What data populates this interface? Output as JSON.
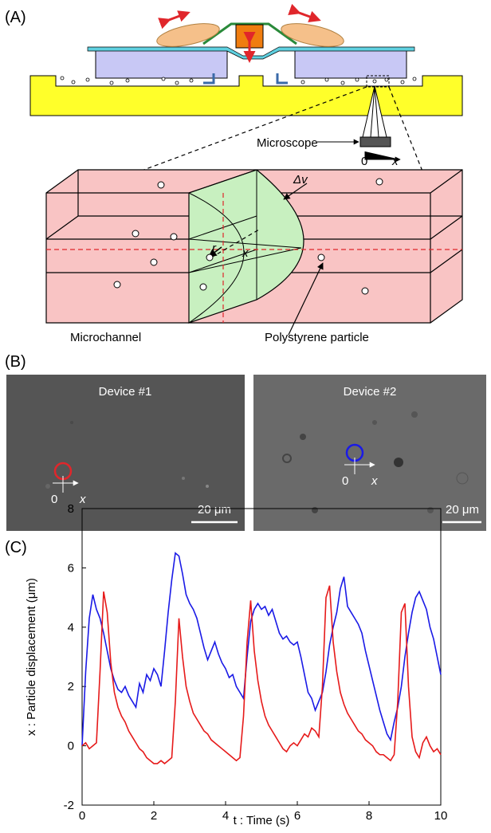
{
  "panel_a": {
    "label": "(A)",
    "microscope": "Microscope",
    "origin": "0",
    "axis": "x",
    "velocity": "Δv",
    "radius": "r",
    "position": "x",
    "channel": "Microchannel",
    "particle": "Polystyrene particle"
  },
  "panel_b": {
    "label": "(B)",
    "images": [
      {
        "title": "Device #1",
        "origin": "0",
        "axis": "x",
        "scale_bar": "20 μm"
      },
      {
        "title": "Device #2",
        "origin": "0",
        "axis": "x",
        "scale_bar": "20 μm"
      }
    ]
  },
  "panel_c": {
    "label": "(C)"
  },
  "chart_data": {
    "type": "line",
    "x_label": "t : Time (s)",
    "y_label": "x : Particle displacement (μm)",
    "xlim": [
      0,
      10
    ],
    "ylim": [
      -2,
      8
    ],
    "xticks": [
      0,
      2,
      4,
      6,
      8,
      10
    ],
    "yticks": [
      -2,
      0,
      2,
      4,
      6,
      8
    ],
    "x": [
      0,
      0.1,
      0.2,
      0.3,
      0.4,
      0.5,
      0.6,
      0.7,
      0.8,
      0.9,
      1,
      1.1,
      1.2,
      1.3,
      1.4,
      1.5,
      1.6,
      1.7,
      1.8,
      1.9,
      2,
      2.1,
      2.2,
      2.3,
      2.4,
      2.5,
      2.6,
      2.7,
      2.8,
      2.9,
      3,
      3.1,
      3.2,
      3.3,
      3.4,
      3.5,
      3.6,
      3.7,
      3.8,
      3.9,
      4,
      4.1,
      4.2,
      4.3,
      4.4,
      4.5,
      4.6,
      4.7,
      4.8,
      4.9,
      5,
      5.1,
      5.2,
      5.3,
      5.4,
      5.5,
      5.6,
      5.7,
      5.8,
      5.9,
      6,
      6.1,
      6.2,
      6.3,
      6.4,
      6.5,
      6.6,
      6.7,
      6.8,
      6.9,
      7,
      7.1,
      7.2,
      7.3,
      7.4,
      7.5,
      7.6,
      7.7,
      7.8,
      7.9,
      8,
      8.1,
      8.2,
      8.3,
      8.4,
      8.5,
      8.6,
      8.7,
      8.8,
      8.9,
      9,
      9.1,
      9.2,
      9.3,
      9.4,
      9.5,
      9.6,
      9.7,
      9.8,
      9.9,
      10
    ],
    "series": [
      {
        "color": "#1a1ae6",
        "values": [
          0,
          2.5,
          4.3,
          5.1,
          4.6,
          4.3,
          3.8,
          3.2,
          2.6,
          2.2,
          1.9,
          1.8,
          2.0,
          1.7,
          1.5,
          1.3,
          2.1,
          1.8,
          2.4,
          2.2,
          2.6,
          2.4,
          2.0,
          3.2,
          4.5,
          5.6,
          6.5,
          6.4,
          5.8,
          5.1,
          4.8,
          4.6,
          4.3,
          3.8,
          3.3,
          2.9,
          3.2,
          3.5,
          3.1,
          2.8,
          2.6,
          2.3,
          2.4,
          2.0,
          1.8,
          1.6,
          3.0,
          4.2,
          4.6,
          4.8,
          4.6,
          4.7,
          4.4,
          4.6,
          4.2,
          3.8,
          3.6,
          3.7,
          3.5,
          3.4,
          3.5,
          3.0,
          2.4,
          1.8,
          1.6,
          1.2,
          1.5,
          1.8,
          2.5,
          3.4,
          4.0,
          4.5,
          5.3,
          5.7,
          4.7,
          4.5,
          4.3,
          4.1,
          3.8,
          3.2,
          2.7,
          2.2,
          1.7,
          1.2,
          0.8,
          0.4,
          0.2,
          0.8,
          1.3,
          2.0,
          3.0,
          3.8,
          4.5,
          5.0,
          5.2,
          4.9,
          4.6,
          4.0,
          3.6,
          3.0,
          2.4
        ]
      },
      {
        "color": "#e61a1a",
        "values": [
          0,
          0.1,
          -0.1,
          0,
          0.1,
          2.5,
          5.2,
          4.5,
          2.8,
          1.8,
          1.3,
          1.0,
          0.8,
          0.5,
          0.3,
          0.1,
          -0.1,
          -0.2,
          -0.4,
          -0.5,
          -0.6,
          -0.6,
          -0.5,
          -0.6,
          -0.5,
          -0.4,
          1.5,
          4.3,
          3.0,
          2.0,
          1.5,
          1.1,
          0.9,
          0.7,
          0.5,
          0.4,
          0.2,
          0.1,
          0,
          -0.1,
          -0.2,
          -0.3,
          -0.4,
          -0.5,
          -0.4,
          1.0,
          3.5,
          4.9,
          3.2,
          2.2,
          1.5,
          1.0,
          0.7,
          0.5,
          0.3,
          0.1,
          -0.1,
          -0.2,
          0,
          0.1,
          0,
          0.2,
          0.4,
          0.3,
          0.6,
          0.5,
          0.3,
          2.0,
          5.0,
          5.4,
          3.5,
          2.5,
          1.8,
          1.4,
          1.1,
          0.9,
          0.7,
          0.5,
          0.4,
          0.2,
          0.1,
          0,
          -0.2,
          -0.3,
          -0.3,
          -0.4,
          -0.5,
          -0.3,
          1.5,
          4.5,
          4.8,
          2.0,
          0.3,
          -0.2,
          -0.4,
          0.1,
          0.3,
          0,
          -0.2,
          -0.1,
          -0.3
        ]
      }
    ]
  }
}
